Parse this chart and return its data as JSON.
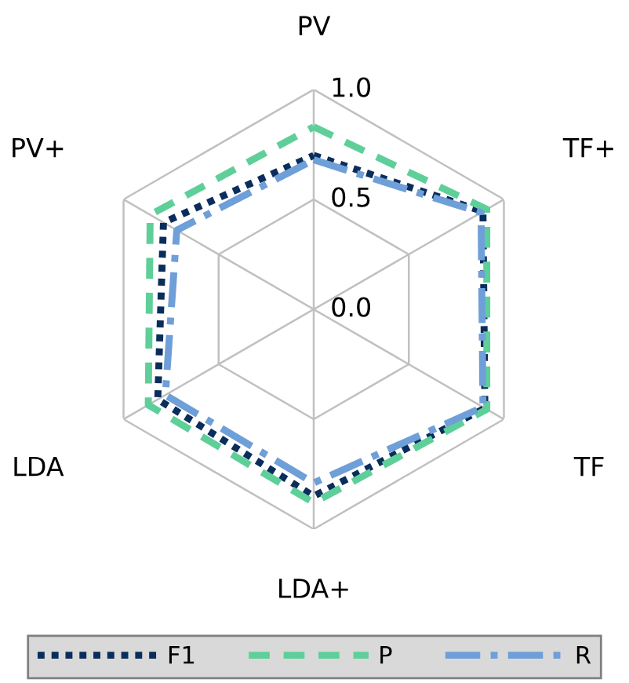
{
  "chart_data": {
    "type": "radar",
    "categories": [
      "PV",
      "TF+",
      "TF",
      "LDA+",
      "LDA",
      "PV+"
    ],
    "series": [
      {
        "name": "F1",
        "color": "#0b2d5b",
        "line_style": "dotted",
        "values": [
          0.7,
          0.89,
          0.9,
          0.85,
          0.82,
          0.79
        ]
      },
      {
        "name": "P",
        "color": "#5fcf9a",
        "line_style": "dashed",
        "values": [
          0.83,
          0.91,
          0.91,
          0.88,
          0.87,
          0.86
        ]
      },
      {
        "name": "R",
        "color": "#6f9fd8",
        "line_style": "dashdot",
        "values": [
          0.68,
          0.88,
          0.89,
          0.79,
          0.78,
          0.72
        ]
      }
    ],
    "ylim": [
      0,
      1.0
    ],
    "yticks": [
      {
        "value": 0,
        "label": "0.0"
      },
      {
        "value": 0.5,
        "label": "0.5"
      },
      {
        "value": 1.0,
        "label": "1.0"
      }
    ],
    "grid": true,
    "legend": "bottom"
  }
}
